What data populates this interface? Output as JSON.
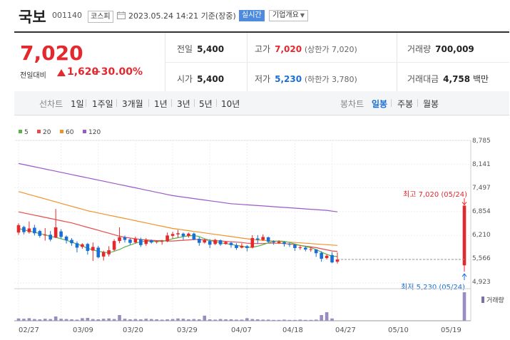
{
  "header": {
    "name": "국보",
    "code": "001140",
    "market": "코스피",
    "datetime": "2023.05.24 14:21 기준(장중)",
    "realtime": "실시간",
    "company_info": "기업개요"
  },
  "price": {
    "current": "7,020",
    "change_label": "전일대비",
    "change": "1,620",
    "change_pct": "+30.00%",
    "prev_close_label": "전일",
    "prev_close": "5,400",
    "open_label": "시가",
    "open": "5,400",
    "high_label": "고가",
    "high": "7,020",
    "upper_limit": "(상한가 7,020)",
    "low_label": "저가",
    "low": "5,230",
    "lower_limit": "(하한가 3,780)",
    "volume_label": "거래량",
    "volume": "700,009",
    "amount_label": "거래대금",
    "amount": "4,758",
    "amount_unit": "백만",
    "colors": {
      "up": "#e3292e",
      "down": "#1a6fd6"
    }
  },
  "toolbar": {
    "line_label": "선차트",
    "line_periods": [
      "1일",
      "1주일",
      "3개월",
      "1년",
      "3년",
      "5년",
      "10년"
    ],
    "candle_label": "봉차트",
    "candle_periods": [
      "일봉",
      "주봉",
      "월봉"
    ],
    "active_candle": "일봉"
  },
  "chart_data": {
    "type": "candlestick",
    "legend": [
      {
        "name": "5",
        "color": "#59b34a"
      },
      {
        "name": "20",
        "color": "#e84b4b"
      },
      {
        "name": "60",
        "color": "#f0932b"
      },
      {
        "name": "120",
        "color": "#9b59c7"
      }
    ],
    "y_ticks": [
      "8,785",
      "8,141",
      "7,497",
      "6,854",
      "6,210",
      "5,566",
      "4,923"
    ],
    "ylim": [
      4923,
      8785
    ],
    "x_ticks": [
      "02/27",
      "03/09",
      "03/20",
      "03/29",
      "04/07",
      "04/18",
      "04/27",
      "05/10",
      "05/19"
    ],
    "x_tick_index": [
      0,
      8,
      15,
      22,
      29,
      36,
      43,
      52,
      59
    ],
    "high_annotation": "최고 7,020 (05/24)",
    "low_annotation": "최저 5,230 (05/24)",
    "volume_label": "거래량",
    "candles": [
      [
        6290,
        6490,
        6230,
        6540,
        6100
      ],
      [
        6440,
        6300,
        6240,
        6470,
        6220
      ],
      [
        6300,
        6400,
        6260,
        6590,
        6240
      ],
      [
        6420,
        6270,
        6210,
        6500,
        6150
      ],
      [
        6330,
        6200,
        6150,
        6360,
        6110
      ],
      [
        6230,
        6230,
        6070,
        6410,
        5990
      ],
      [
        6230,
        6100,
        6050,
        6330,
        6020
      ],
      [
        6150,
        6430,
        6140,
        6930,
        6080
      ],
      [
        6320,
        6170,
        6130,
        6380,
        6090
      ],
      [
        6180,
        6080,
        5990,
        6210,
        5950
      ],
      [
        6090,
        6000,
        5930,
        6140,
        5880
      ],
      [
        6000,
        5880,
        5750,
        6050,
        5650
      ],
      [
        5900,
        5970,
        5850,
        6000,
        5780
      ],
      [
        5980,
        5790,
        5690,
        6010,
        5410
      ],
      [
        5800,
        5900,
        5520,
        6020,
        5490
      ],
      [
        5880,
        5620,
        5590,
        5930,
        5390
      ],
      [
        5640,
        5760,
        5530,
        5800,
        5440
      ],
      [
        5700,
        5810,
        5640,
        5920,
        5610
      ],
      [
        5820,
        6060,
        5790,
        6110,
        5740
      ],
      [
        6060,
        6160,
        6000,
        6430,
        5950
      ],
      [
        6160,
        6090,
        6020,
        6210,
        5980
      ],
      [
        6100,
        6010,
        5960,
        6130,
        5920
      ],
      [
        6020,
        6120,
        5990,
        6180,
        5930
      ],
      [
        6110,
        5950,
        5900,
        6150,
        5860
      ],
      [
        5980,
        6090,
        5930,
        6140,
        5900
      ],
      [
        6080,
        6020,
        5990,
        6100,
        5960
      ],
      [
        6040,
        6050,
        5990,
        6070,
        5960
      ],
      [
        6040,
        6060,
        5960,
        6090,
        5940
      ],
      [
        6050,
        6210,
        6030,
        6290,
        5980
      ],
      [
        6200,
        6250,
        6130,
        6310,
        6090
      ],
      [
        6240,
        6270,
        6150,
        6360,
        6130
      ],
      [
        6260,
        6190,
        6090,
        6290,
        6030
      ],
      [
        6200,
        6260,
        6150,
        6290,
        6120
      ],
      [
        6260,
        6100,
        6080,
        6290,
        6050
      ],
      [
        6120,
        6010,
        5930,
        6170,
        5890
      ],
      [
        6020,
        6080,
        5990,
        6120,
        5950
      ],
      [
        6060,
        5960,
        5870,
        6110,
        5810
      ],
      [
        5980,
        6090,
        5950,
        6120,
        5870
      ],
      [
        6080,
        5970,
        5930,
        6100,
        5900
      ],
      [
        5980,
        6030,
        5960,
        6060,
        5940
      ],
      [
        6010,
        5950,
        5880,
        6040,
        5870
      ],
      [
        5950,
        5870,
        5820,
        6000,
        5770
      ],
      [
        5880,
        5930,
        5860,
        6000,
        5840
      ],
      [
        5920,
        5870,
        5780,
        5950,
        5700
      ],
      [
        5880,
        6140,
        5860,
        6220,
        5830
      ],
      [
        6130,
        6090,
        5980,
        6220,
        5930
      ],
      [
        6090,
        6170,
        6060,
        6240,
        6030
      ],
      [
        6160,
        6040,
        6010,
        6180,
        5990
      ],
      [
        6050,
        6020,
        5960,
        6080,
        5940
      ],
      [
        6010,
        6040,
        5980,
        6080,
        5960
      ],
      [
        6030,
        5980,
        5910,
        6050,
        5880
      ],
      [
        5980,
        5960,
        5900,
        6010,
        5880
      ],
      [
        5960,
        5870,
        5790,
        5980,
        5750
      ],
      [
        5870,
        5890,
        5820,
        5950,
        5780
      ],
      [
        5880,
        5830,
        5780,
        5920,
        5740
      ],
      [
        5830,
        5840,
        5770,
        5910,
        5750
      ],
      [
        5830,
        5730,
        5630,
        5840,
        5600
      ],
      [
        5740,
        5580,
        5500,
        5780,
        5440
      ],
      [
        5600,
        5660,
        5560,
        5700,
        5480
      ],
      [
        5680,
        5480,
        5460,
        5760,
        5450
      ],
      [
        5500,
        5560,
        5450,
        5750,
        5420
      ]
    ],
    "ma5": [
      6400,
      6360,
      6330,
      6300,
      6260,
      6230,
      6180,
      6160,
      6120,
      6080,
      6030,
      5980,
      5930,
      5860,
      5820,
      5780,
      5760,
      5740,
      5780,
      5830,
      5900,
      5950,
      6000,
      6040,
      6060,
      6050,
      6050,
      6050,
      6080,
      6120,
      6150,
      6180,
      6200,
      6210,
      6180,
      6120,
      6080,
      6040,
      6010,
      5990,
      5970,
      5940,
      5920,
      5890,
      5890,
      5920,
      5960,
      6010,
      6050,
      6060,
      6050,
      6020,
      5980,
      5940,
      5910,
      5880,
      5830,
      5760,
      5700,
      5650,
      5640
    ],
    "ma20": [
      6850,
      6820,
      6790,
      6760,
      6730,
      6700,
      6670,
      6640,
      6610,
      6580,
      6550,
      6510,
      6470,
      6430,
      6390,
      6350,
      6310,
      6270,
      6230,
      6190,
      6160,
      6140,
      6120,
      6100,
      6090,
      6080,
      6070,
      6070,
      6060,
      6060,
      6070,
      6080,
      6090,
      6100,
      6100,
      6090,
      6080,
      6070,
      6060,
      6050,
      6040,
      6030,
      6020,
      6000,
      5990,
      5990,
      5990,
      6000,
      6000,
      6000,
      5990,
      5980,
      5960,
      5940,
      5920,
      5900,
      5880,
      5850,
      5820,
      5790,
      5780
    ],
    "ma60": [
      7400,
      7360,
      7320,
      7280,
      7240,
      7200,
      7160,
      7120,
      7080,
      7040,
      7000,
      6960,
      6920,
      6880,
      6850,
      6820,
      6790,
      6760,
      6730,
      6700,
      6670,
      6640,
      6610,
      6580,
      6550,
      6520,
      6490,
      6460,
      6430,
      6400,
      6380,
      6360,
      6340,
      6320,
      6300,
      6280,
      6260,
      6240,
      6220,
      6200,
      6180,
      6160,
      6140,
      6120,
      6100,
      6090,
      6080,
      6070,
      6060,
      6050,
      6040,
      6030,
      6020,
      6010,
      6000,
      5990,
      5980,
      5970,
      5960,
      5950,
      5940
    ],
    "ma120": [
      8160,
      8130,
      8100,
      8070,
      8040,
      8010,
      7980,
      7950,
      7920,
      7890,
      7860,
      7830,
      7800,
      7770,
      7740,
      7710,
      7680,
      7650,
      7620,
      7590,
      7560,
      7530,
      7500,
      7470,
      7440,
      7410,
      7380,
      7350,
      7320,
      7290,
      7270,
      7250,
      7230,
      7210,
      7190,
      7170,
      7150,
      7130,
      7110,
      7090,
      7070,
      7060,
      7050,
      7040,
      7030,
      7020,
      7010,
      7000,
      6990,
      6980,
      6970,
      6960,
      6950,
      6940,
      6930,
      6920,
      6910,
      6900,
      6890,
      6870,
      6850
    ],
    "today_candle": [
      5400,
      7020,
      5230,
      7020
    ],
    "volumes": [
      8000,
      7000,
      9000,
      6000,
      5000,
      7000,
      6000,
      15000,
      7000,
      6000,
      5000,
      4000,
      9000,
      10000,
      6000,
      5000,
      7000,
      8000,
      6000,
      20000,
      7000,
      5000,
      6000,
      5000,
      7000,
      6000,
      5000,
      4000,
      5000,
      6000,
      8000,
      7000,
      5000,
      6000,
      5000,
      18000,
      5000,
      4000,
      6000,
      5000,
      5000,
      4000,
      4000,
      9000,
      6000,
      5000,
      4000,
      4000,
      3000,
      3000,
      4000,
      3000,
      3000,
      4000,
      3000,
      3000,
      4000,
      20000,
      30000,
      8000,
      100000
    ]
  }
}
